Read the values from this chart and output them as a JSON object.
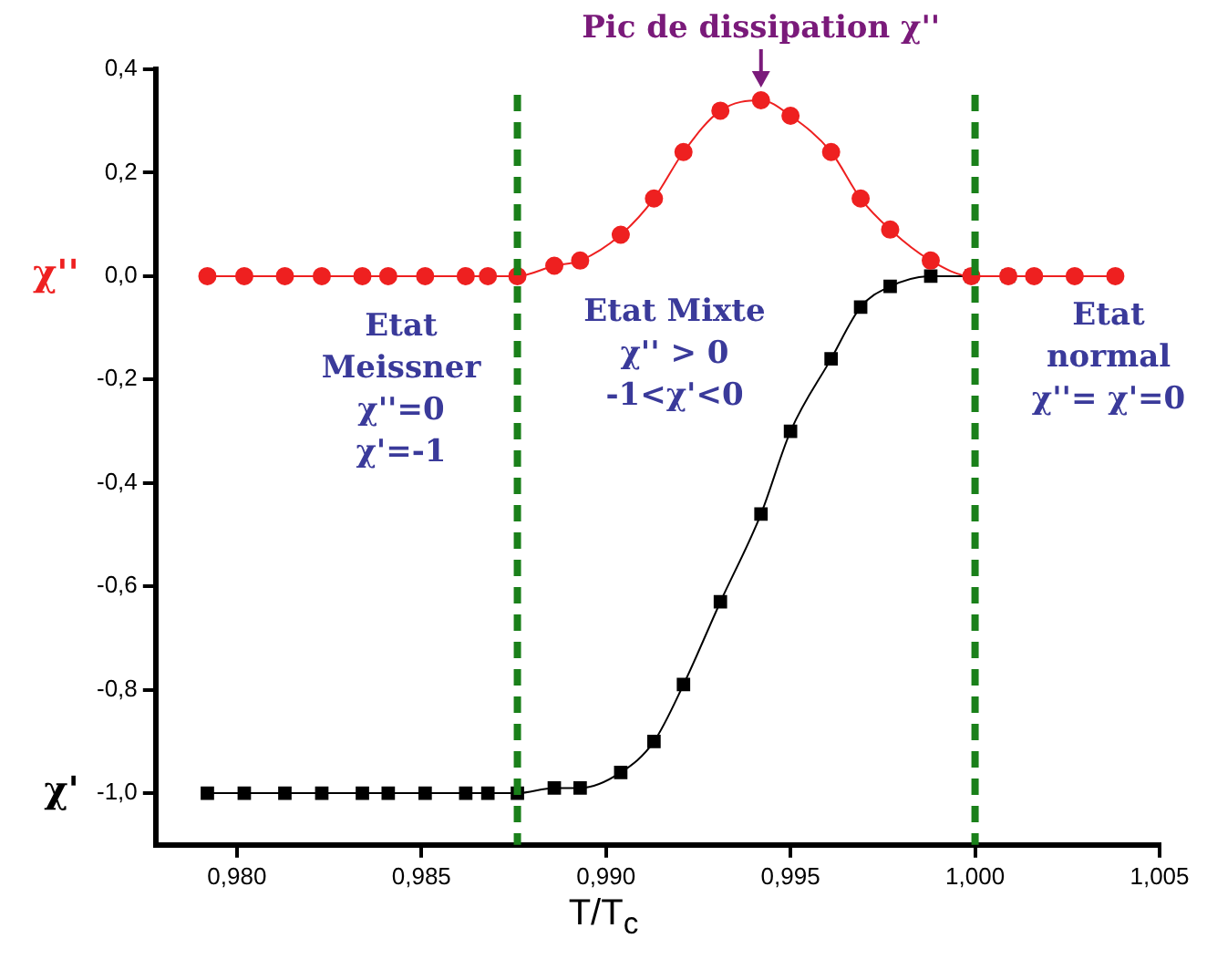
{
  "chart_data": {
    "type": "line",
    "xlabel": "T/T$_{c}$",
    "x": [
      0.9792,
      0.9802,
      0.9813,
      0.9823,
      0.9834,
      0.9841,
      0.9851,
      0.9862,
      0.9868,
      0.9876,
      0.9886,
      0.9893,
      0.9904,
      0.9913,
      0.9921,
      0.9931,
      0.9942,
      0.995,
      0.9961,
      0.9969,
      0.9977,
      0.9988,
      0.9999,
      1.0009,
      1.0016,
      1.0027,
      1.0038
    ],
    "series": [
      {
        "name": "χ''",
        "color": "#ee2020",
        "marker": "circle",
        "values": [
          0,
          0,
          0,
          0,
          0,
          0,
          0,
          0,
          0,
          0,
          0.02,
          0.03,
          0.08,
          0.15,
          0.24,
          0.32,
          0.34,
          0.31,
          0.24,
          0.15,
          0.09,
          0.03,
          0,
          0,
          0,
          0,
          0
        ]
      },
      {
        "name": "χ'",
        "color": "#000000",
        "marker": "square",
        "values": [
          -1,
          -1,
          -1,
          -1,
          -1,
          -1,
          -1,
          -1,
          -1,
          -1,
          -0.99,
          -0.99,
          -0.96,
          -0.9,
          -0.79,
          -0.63,
          -0.46,
          -0.3,
          -0.16,
          -0.06,
          -0.02,
          0,
          0,
          0,
          null,
          null,
          null
        ]
      }
    ],
    "xlim": [
      0.9778,
      1.005
    ],
    "xticks": [
      {
        "value": 0.98,
        "label": "0,980"
      },
      {
        "value": 0.985,
        "label": "0,985"
      },
      {
        "value": 0.99,
        "label": "0,990"
      },
      {
        "value": 0.995,
        "label": "0,995"
      },
      {
        "value": 1.0,
        "label": "1,000"
      },
      {
        "value": 1.005,
        "label": "1,005"
      }
    ],
    "ylim": [
      -1.1,
      0.4
    ],
    "yticks": [
      {
        "value": 0.4,
        "label": "0,4"
      },
      {
        "value": 0.2,
        "label": "0,2"
      },
      {
        "value": 0,
        "label": "0,0"
      },
      {
        "value": -0.2,
        "label": "-0,2"
      },
      {
        "value": -0.4,
        "label": "-0,4"
      },
      {
        "value": -0.6,
        "label": "-0,6"
      },
      {
        "value": -0.8,
        "label": "-0,8"
      },
      {
        "value": -1.0,
        "label": "-1,0"
      }
    ],
    "ref_lines": [
      {
        "axis": "x",
        "value": 0.9876,
        "color": "#1a801a",
        "line_style": "dashed"
      },
      {
        "axis": "x",
        "value": 1.0,
        "color": "#1a801a",
        "line_style": "dashed"
      }
    ],
    "annotations": [
      {
        "text": "Pic de dissipation χ''",
        "x": 0.9942,
        "y": 0.34
      },
      "Etat\nMeissner\nχ''=0\nχ'=-1",
      "Etat Mixte\nχ'' > 0\n-1<χ'<0",
      "Etat\nnormal\nχ''= χ'=0"
    ],
    "grid": false,
    "legend": false,
    "line_style": "solid"
  }
}
